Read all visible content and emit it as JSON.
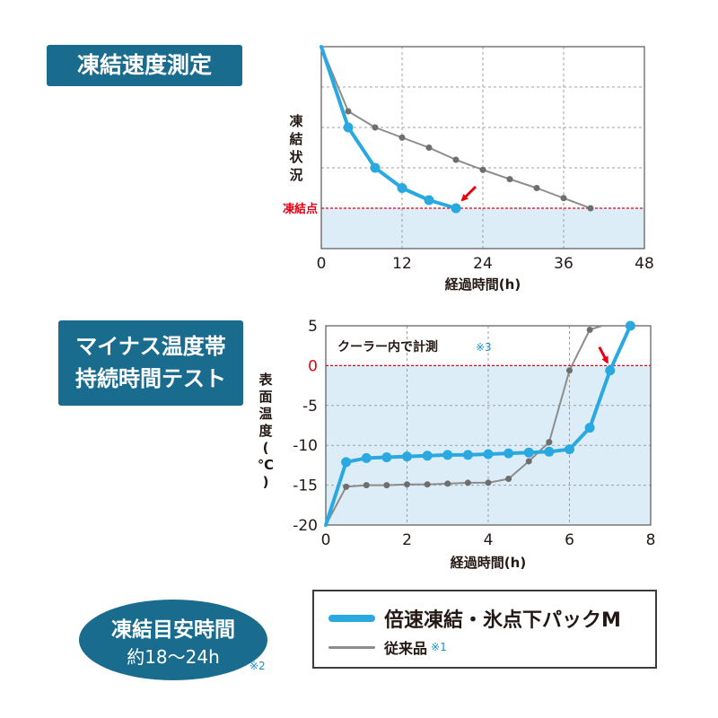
{
  "panel1": {
    "tag": "凍結速度測定",
    "ylabel": "凍結状況",
    "freeze_label": "凍結点"
  },
  "panel2": {
    "tag_lines": [
      "マイナス温度帯",
      "持続時間テスト"
    ],
    "annotation": "クーラー内で計測",
    "annotation_note": "※3",
    "ylabel": "表面温度(℃)"
  },
  "oval": {
    "line1": "凍結目安時間",
    "line2": "約18〜24h",
    "note": "※2"
  },
  "legend": {
    "item1": "倍速凍結・氷点下パックM",
    "item2": "従来品",
    "item2_note": "※1"
  },
  "colors": {
    "product": "#29a9e0",
    "conventional": "#8c8c8c",
    "freeze_line": "#e60012",
    "frozen_zone": "#dcedf7",
    "tag_bg": "#1a6c8e"
  },
  "chart_data": [
    {
      "type": "line",
      "title": "凍結速度測定",
      "xlabel": "経過時間(h)",
      "ylabel": "凍結状況",
      "xlim": [
        0,
        48
      ],
      "xticks": [
        0,
        12,
        24,
        36,
        48
      ],
      "ylim": [
        0,
        5
      ],
      "y_ticks_labeled": false,
      "freeze_point_y": 1,
      "freeze_label": "凍結点",
      "grid": true,
      "series": [
        {
          "name": "倍速凍結・氷点下パックM",
          "x": [
            0,
            4,
            8,
            12,
            16,
            20
          ],
          "y": [
            5,
            3.0,
            2.0,
            1.5,
            1.2,
            1.0
          ]
        },
        {
          "name": "従来品",
          "x": [
            0,
            4,
            8,
            12,
            16,
            20,
            24,
            28,
            32,
            36,
            40
          ],
          "y": [
            5,
            3.4,
            3.0,
            2.75,
            2.5,
            2.2,
            1.95,
            1.72,
            1.5,
            1.25,
            1.0
          ]
        }
      ],
      "annotation": "arrow to 倍速凍結・氷点下パックM at x=20"
    },
    {
      "type": "line",
      "title": "マイナス温度帯持続時間テスト",
      "xlabel": "経過時間(h)",
      "ylabel": "表面温度(℃)",
      "xlim": [
        0,
        8
      ],
      "xticks": [
        0,
        2,
        4,
        6,
        8
      ],
      "ylim": [
        -20,
        5
      ],
      "yticks": [
        5,
        0,
        -5,
        -10,
        -15,
        -20
      ],
      "zero_line": 0,
      "grid": true,
      "annotation_text": "クーラー内で計測",
      "annotation_note": "※3",
      "series": [
        {
          "name": "倍速凍結・氷点下パックM",
          "x": [
            0,
            0.5,
            1.0,
            1.5,
            2.0,
            2.5,
            3.0,
            3.5,
            4.0,
            4.5,
            5.0,
            5.5,
            6.0,
            6.5,
            7.0,
            7.5
          ],
          "y": [
            -20,
            -12.1,
            -11.6,
            -11.5,
            -11.4,
            -11.3,
            -11.2,
            -11.2,
            -11.1,
            -11.0,
            -10.9,
            -10.8,
            -10.5,
            -7.8,
            -0.6,
            5.0
          ]
        },
        {
          "name": "従来品",
          "x": [
            0,
            0.5,
            1.0,
            1.5,
            2.0,
            2.5,
            3.0,
            3.5,
            4.0,
            4.5,
            5.0,
            5.5,
            6.0,
            6.5,
            6.8
          ],
          "y": [
            -20,
            -15.2,
            -15.0,
            -15.0,
            -14.9,
            -14.9,
            -14.8,
            -14.7,
            -14.7,
            -14.2,
            -12.0,
            -9.6,
            -0.6,
            4.5,
            5.0
          ]
        }
      ]
    }
  ]
}
